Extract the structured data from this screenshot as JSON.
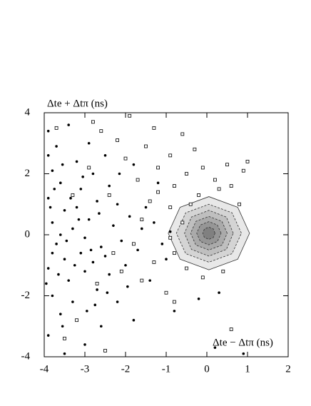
{
  "chart_data": {
    "type": "scatter",
    "y_label": "Δte + Δtπ (ns)",
    "x_label": "Δte − Δtπ (ns)",
    "xlim": [
      -4,
      2
    ],
    "ylim": [
      -4,
      4
    ],
    "xticks": [
      -4,
      -3,
      -2,
      -1,
      0,
      1,
      2
    ],
    "yticks": [
      -4,
      -2,
      0,
      2,
      4
    ],
    "contours": [
      {
        "color": "#e8e8e8",
        "x": [
          1.05,
          0.76,
          0.05,
          -0.66,
          -0.95,
          -0.66,
          0.05,
          0.76
        ],
        "y": [
          0.05,
          0.9,
          1.25,
          0.9,
          0.05,
          -0.8,
          -1.15,
          -0.8
        ]
      },
      {
        "color": "#d4d4d4",
        "x": [
          0.85,
          0.62,
          0.05,
          -0.52,
          -0.75,
          -0.52,
          0.05,
          0.62
        ],
        "y": [
          0.05,
          0.72,
          1.0,
          0.72,
          0.05,
          -0.62,
          -0.9,
          -0.62
        ]
      },
      {
        "color": "#bfbfbf",
        "x": [
          0.65,
          0.48,
          0.05,
          -0.38,
          -0.55,
          -0.38,
          0.05,
          0.48
        ],
        "y": [
          0.05,
          0.58,
          0.8,
          0.58,
          0.05,
          -0.48,
          -0.7,
          -0.48
        ]
      },
      {
        "color": "#aaaaaa",
        "x": [
          0.5,
          0.37,
          0.05,
          -0.27,
          -0.4,
          -0.27,
          0.05,
          0.37
        ],
        "y": [
          0.05,
          0.44,
          0.6,
          0.44,
          0.05,
          -0.34,
          -0.5,
          -0.34
        ]
      },
      {
        "color": "#969696",
        "x": [
          0.35,
          0.26,
          0.05,
          -0.16,
          -0.25,
          -0.16,
          0.05,
          0.26
        ],
        "y": [
          0.05,
          0.32,
          0.43,
          0.32,
          0.05,
          -0.22,
          -0.33,
          -0.22
        ]
      },
      {
        "color": "#808080",
        "x": [
          0.2,
          0.16,
          0.05,
          -0.06,
          -0.1,
          -0.06,
          0.05,
          0.16
        ],
        "y": [
          0.05,
          0.19,
          0.25,
          0.19,
          0.05,
          -0.09,
          -0.15,
          -0.09
        ]
      }
    ],
    "series": [
      {
        "marker": "dot",
        "color": "#000000",
        "x": [
          -3.9,
          -3.7,
          -3.8,
          -3.6,
          -3.9,
          -3.5,
          -3.8,
          -3.3,
          -3.7,
          -3.5,
          -3.9,
          -3.4,
          -3.8,
          -3.6,
          -3.9,
          -3.2,
          -3.1,
          -3.2,
          -3.0,
          -3.1,
          -3.0,
          -3.3,
          -2.9,
          -2.8,
          -2.7,
          -2.9,
          -2.6,
          -2.8,
          -2.7,
          -2.5,
          -2.4,
          -2.3,
          -2.5,
          -2.4,
          -2.2,
          -2.1,
          -2.0,
          -1.9,
          -1.8,
          -1.7,
          -1.5,
          -1.4,
          -1.2,
          -1.0,
          -3.4,
          -2.2,
          -2.6,
          -3.0,
          -3.5,
          0.3,
          -0.2,
          0.2,
          0.9,
          -0.8,
          -1.8,
          -3.8,
          -3.6,
          -3.95,
          -3.75,
          -3.55,
          -3.25,
          -3.15,
          -2.95,
          -3.45,
          -2.85,
          -3.65,
          -3.35,
          -2.65,
          -3.85,
          -3.05,
          -2.45,
          -2.15,
          -1.95,
          -1.6,
          -1.3,
          -1.1,
          -0.9,
          -2.75,
          -3.55,
          -3.9
        ],
        "y": [
          3.4,
          2.9,
          2.1,
          1.7,
          1.2,
          0.8,
          0.4,
          0.2,
          -0.3,
          -0.8,
          -1.1,
          -1.5,
          -2.0,
          -2.6,
          -3.3,
          2.4,
          1.5,
          0.9,
          -0.1,
          -0.6,
          -1.2,
          -2.2,
          3.0,
          2.0,
          1.1,
          0.5,
          -0.4,
          -0.9,
          -1.8,
          2.6,
          1.6,
          0.3,
          -0.7,
          -1.3,
          1.0,
          -0.2,
          -1.0,
          0.6,
          2.3,
          -0.5,
          0.9,
          -1.5,
          1.7,
          -0.8,
          3.6,
          -2.2,
          -3.0,
          -3.6,
          -3.9,
          -1.9,
          -2.1,
          -3.7,
          -3.9,
          -2.5,
          -2.8,
          -0.6,
          0.0,
          -1.6,
          1.5,
          2.3,
          -1.0,
          0.5,
          -2.5,
          -0.2,
          -0.5,
          -1.3,
          1.2,
          0.7,
          0.9,
          1.9,
          -1.9,
          2.0,
          -1.7,
          0.2,
          0.4,
          -0.3,
          0.1,
          -2.3,
          -3.0,
          2.6
        ]
      },
      {
        "marker": "square",
        "color": "#000000",
        "x": [
          -3.7,
          -2.6,
          -1.9,
          -1.3,
          -0.6,
          -2.2,
          -1.5,
          -0.9,
          -0.3,
          0.5,
          0.9,
          1.0,
          -2.0,
          -1.2,
          -0.5,
          0.2,
          -1.7,
          -0.8,
          -0.2,
          0.3,
          -2.4,
          -1.4,
          -0.9,
          -0.6,
          -0.9,
          -0.8,
          -1.3,
          -1.6,
          -2.1,
          -0.5,
          -1.0,
          -2.7,
          -3.2,
          -2.5,
          0.6,
          -0.8,
          -1.2,
          -0.4,
          -2.9,
          -3.3,
          -1.8,
          -2.3,
          0.8,
          0.4,
          -0.1,
          -3.5,
          -2.8,
          -0.1,
          0.6,
          -1.6
        ],
        "y": [
          3.5,
          3.4,
          3.9,
          3.5,
          3.3,
          3.1,
          2.9,
          2.6,
          2.8,
          2.3,
          2.1,
          2.4,
          2.5,
          2.2,
          2.0,
          1.8,
          1.8,
          1.6,
          1.3,
          1.5,
          1.3,
          1.1,
          0.9,
          0.4,
          -0.1,
          -0.6,
          -0.9,
          -1.5,
          -1.2,
          -1.1,
          -1.9,
          -1.6,
          -2.8,
          -3.8,
          -3.1,
          -2.2,
          1.4,
          1.0,
          2.2,
          1.3,
          -0.3,
          -0.6,
          1.0,
          -1.2,
          -1.4,
          -3.4,
          3.7,
          2.2,
          1.6,
          0.5
        ]
      }
    ]
  }
}
